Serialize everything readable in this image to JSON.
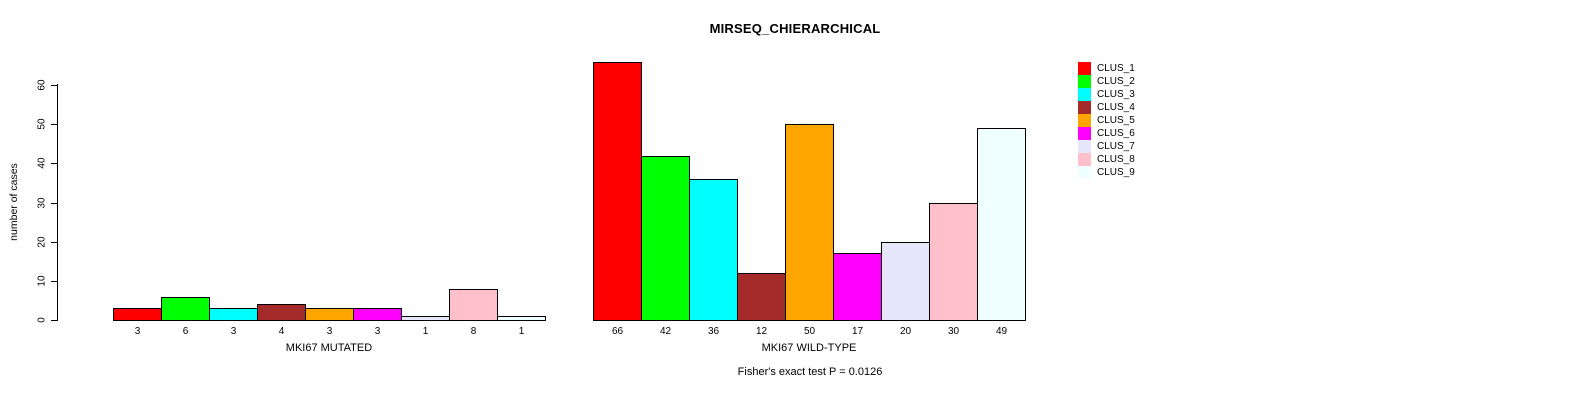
{
  "chart_data": {
    "type": "bar",
    "title": "MIRSEQ_CHIERARCHICAL",
    "ylabel": "number of cases",
    "ylim": [
      0,
      60
    ],
    "yticks": [
      0,
      10,
      20,
      30,
      40,
      50,
      60
    ],
    "grid": false,
    "legend_position": "top-right",
    "bar_value_labels_shown": true,
    "series": [
      {
        "name": "CLUS_1",
        "color": "#FF0000"
      },
      {
        "name": "CLUS_2",
        "color": "#00FF00"
      },
      {
        "name": "CLUS_3",
        "color": "#00FFFF"
      },
      {
        "name": "CLUS_4",
        "color": "#A52A2A"
      },
      {
        "name": "CLUS_5",
        "color": "#FFA500"
      },
      {
        "name": "CLUS_6",
        "color": "#FF00FF"
      },
      {
        "name": "CLUS_7",
        "color": "#E6E6FA"
      },
      {
        "name": "CLUS_8",
        "color": "#FFC0CB"
      },
      {
        "name": "CLUS_9",
        "color": "#F0FFFF"
      }
    ],
    "groups": [
      {
        "label": "MKI67 MUTATED",
        "values": [
          3,
          6,
          3,
          4,
          3,
          3,
          1,
          8,
          1
        ]
      },
      {
        "label": "MKI67 WILD-TYPE",
        "values": [
          66,
          42,
          36,
          12,
          50,
          17,
          20,
          30,
          49
        ]
      }
    ],
    "annotation": "Fisher's exact test P = 0.0126"
  }
}
